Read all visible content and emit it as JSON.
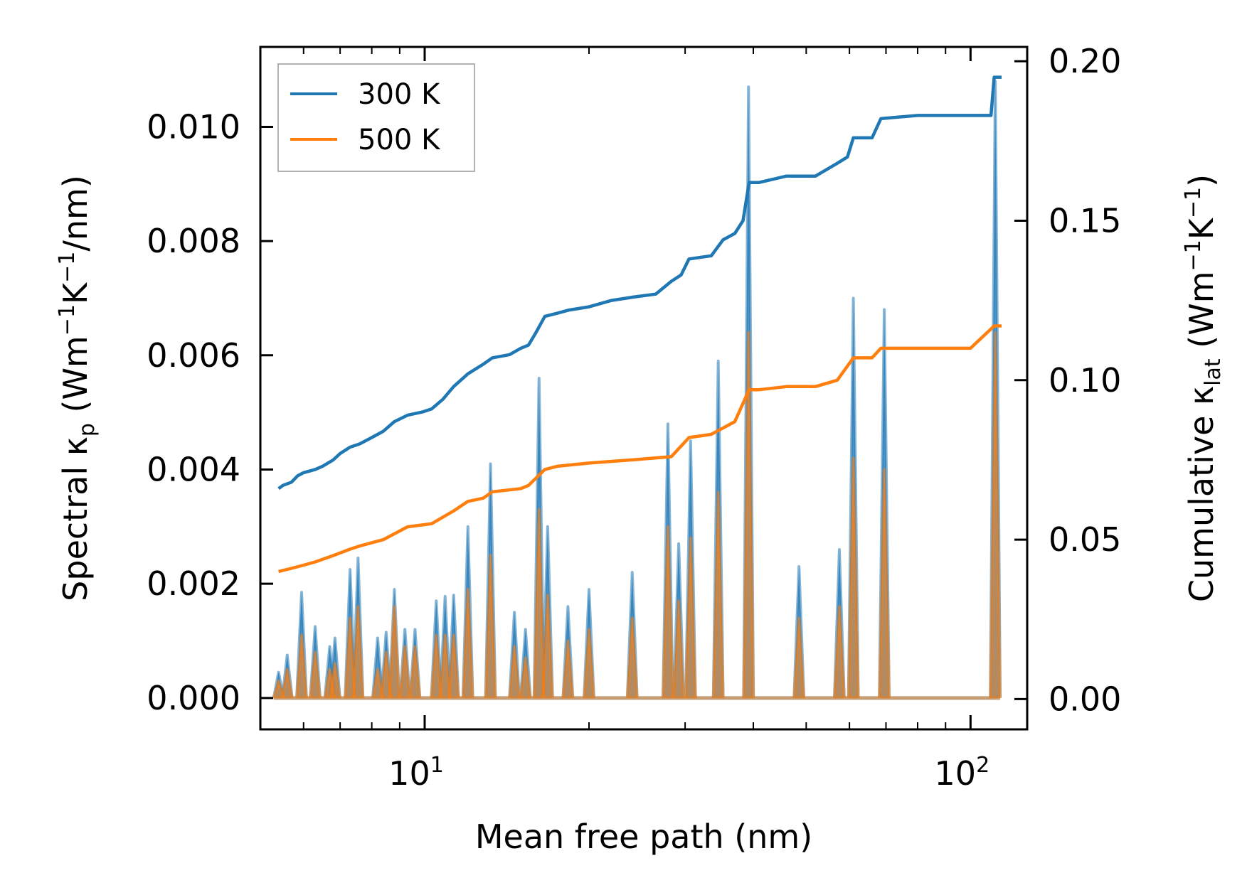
{
  "chart_data": {
    "type": "line",
    "xscale": "log",
    "xlabel": "Mean free path (nm)",
    "ylabel_left": {
      "prefix": "Spectral κ",
      "sub": "p",
      "mid": " (Wm",
      "sup1": "−1",
      "mid2": "K",
      "sup2": "−1",
      "suffix": "/nm)"
    },
    "ylabel_right": {
      "prefix": "Cumulative κ",
      "sub": "lat",
      "mid": " (Wm",
      "sup1": "−1",
      "mid2": "K",
      "sup2": "−1",
      "suffix": ")"
    },
    "xlim": [
      5.0,
      127
    ],
    "ylim_left": [
      -0.00055,
      0.0114
    ],
    "ylim_right": [
      -0.0095,
      0.2045
    ],
    "x_ticks": [
      {
        "value": 10,
        "base": "10",
        "exp": "1"
      },
      {
        "value": 100,
        "base": "10",
        "exp": "2"
      }
    ],
    "y_ticks_left": [
      {
        "value": 0.0,
        "label": "0.000"
      },
      {
        "value": 0.002,
        "label": "0.002"
      },
      {
        "value": 0.004,
        "label": "0.004"
      },
      {
        "value": 0.006,
        "label": "0.006"
      },
      {
        "value": 0.008,
        "label": "0.008"
      },
      {
        "value": 0.01,
        "label": "0.010"
      }
    ],
    "y_ticks_right": [
      {
        "value": 0.0,
        "label": "0.00"
      },
      {
        "value": 0.05,
        "label": "0.05"
      },
      {
        "value": 0.1,
        "label": "0.10"
      },
      {
        "value": 0.15,
        "label": "0.15"
      },
      {
        "value": 0.2,
        "label": "0.20"
      }
    ],
    "legend": [
      {
        "label": "300 K",
        "color": "#1f77b4"
      },
      {
        "label": "500 K",
        "color": "#ff7f0e"
      }
    ],
    "legend_position": "top-left",
    "series": [
      {
        "name": "300 K",
        "color": "#1f77b4",
        "axis": "right",
        "kind": "cumulative",
        "x": [
          5.4,
          5.5,
          5.7,
          5.85,
          6.0,
          6.3,
          6.5,
          6.8,
          7.0,
          7.3,
          7.6,
          8.0,
          8.4,
          8.8,
          9.3,
          9.9,
          10.3,
          10.8,
          11.3,
          12.0,
          12.8,
          13.3,
          14.3,
          15.0,
          15.5,
          16.0,
          16.6,
          17.5,
          18.4,
          20.0,
          22.0,
          24.0,
          26.5,
          28.3,
          29.5,
          30.5,
          33.5,
          35.2,
          37.0,
          38.3,
          39.3,
          41.0,
          46.0,
          52.0,
          57.0,
          59.5,
          61.0,
          66.0,
          68.5,
          80.0,
          100.0,
          109.0,
          110.5,
          114.0
        ],
        "y": [
          0.066,
          0.067,
          0.068,
          0.07,
          0.071,
          0.072,
          0.073,
          0.075,
          0.077,
          0.079,
          0.08,
          0.082,
          0.084,
          0.087,
          0.089,
          0.09,
          0.091,
          0.094,
          0.098,
          0.102,
          0.105,
          0.107,
          0.108,
          0.11,
          0.111,
          0.115,
          0.12,
          0.121,
          0.122,
          0.123,
          0.125,
          0.126,
          0.127,
          0.131,
          0.133,
          0.138,
          0.139,
          0.144,
          0.146,
          0.15,
          0.162,
          0.162,
          0.164,
          0.164,
          0.168,
          0.17,
          0.176,
          0.176,
          0.182,
          0.183,
          0.183,
          0.183,
          0.195,
          0.195
        ]
      },
      {
        "name": "500 K",
        "color": "#ff7f0e",
        "axis": "right",
        "kind": "cumulative",
        "x": [
          5.4,
          5.7,
          6.0,
          6.3,
          6.8,
          7.3,
          7.6,
          8.4,
          9.3,
          10.3,
          11.3,
          12.0,
          12.8,
          13.3,
          15.0,
          15.5,
          16.6,
          17.5,
          20.0,
          24.0,
          28.3,
          30.5,
          33.5,
          37.0,
          39.3,
          41.0,
          46.0,
          52.0,
          57.0,
          61.0,
          66.0,
          68.5,
          80.0,
          100.0,
          110.5,
          114.0
        ],
        "y": [
          0.04,
          0.041,
          0.042,
          0.043,
          0.045,
          0.047,
          0.048,
          0.05,
          0.054,
          0.055,
          0.059,
          0.062,
          0.063,
          0.065,
          0.066,
          0.067,
          0.072,
          0.073,
          0.074,
          0.075,
          0.076,
          0.082,
          0.083,
          0.087,
          0.097,
          0.097,
          0.098,
          0.098,
          0.1,
          0.107,
          0.107,
          0.11,
          0.11,
          0.11,
          0.117,
          0.117
        ]
      },
      {
        "name": "300 K spectral",
        "color": "#1f77b4",
        "axis": "left",
        "kind": "spectral",
        "peaks": [
          [
            5.4,
            0.00045
          ],
          [
            5.6,
            0.00075
          ],
          [
            5.95,
            0.00185
          ],
          [
            6.3,
            0.00125
          ],
          [
            6.7,
            0.0009
          ],
          [
            6.85,
            0.00105
          ],
          [
            7.3,
            0.00225
          ],
          [
            7.55,
            0.00245
          ],
          [
            8.2,
            0.00105
          ],
          [
            8.5,
            0.00115
          ],
          [
            8.8,
            0.0019
          ],
          [
            9.2,
            0.0012
          ],
          [
            9.6,
            0.0012
          ],
          [
            10.5,
            0.0017
          ],
          [
            10.9,
            0.00178
          ],
          [
            11.3,
            0.0018
          ],
          [
            12.0,
            0.003
          ],
          [
            13.2,
            0.0041
          ],
          [
            14.6,
            0.0015
          ],
          [
            15.3,
            0.0012
          ],
          [
            16.2,
            0.0056
          ],
          [
            16.8,
            0.003
          ],
          [
            18.3,
            0.0016
          ],
          [
            20.0,
            0.0019
          ],
          [
            24.0,
            0.0022
          ],
          [
            27.9,
            0.0048
          ],
          [
            29.2,
            0.0027
          ],
          [
            30.7,
            0.0045
          ],
          [
            34.5,
            0.0059
          ],
          [
            39.2,
            0.0107
          ],
          [
            48.5,
            0.0023
          ],
          [
            57.5,
            0.0026
          ],
          [
            61.0,
            0.007
          ],
          [
            69.5,
            0.0068
          ],
          [
            111.0,
            0.0108
          ]
        ]
      },
      {
        "name": "500 K spectral",
        "color": "#ff7f0e",
        "axis": "left",
        "kind": "spectral",
        "peaks": [
          [
            5.4,
            0.0003
          ],
          [
            5.6,
            0.0005
          ],
          [
            5.95,
            0.0011
          ],
          [
            6.3,
            0.0008
          ],
          [
            6.7,
            0.0005
          ],
          [
            6.85,
            0.0006
          ],
          [
            7.3,
            0.0014
          ],
          [
            7.55,
            0.0016
          ],
          [
            8.2,
            0.0005
          ],
          [
            8.5,
            0.0008
          ],
          [
            8.8,
            0.0016
          ],
          [
            9.2,
            0.0009
          ],
          [
            9.6,
            0.0009
          ],
          [
            10.5,
            0.0011
          ],
          [
            10.9,
            0.0011
          ],
          [
            11.3,
            0.0011
          ],
          [
            12.0,
            0.0019
          ],
          [
            13.2,
            0.0025
          ],
          [
            14.6,
            0.0009
          ],
          [
            15.3,
            0.0007
          ],
          [
            16.2,
            0.0033
          ],
          [
            16.8,
            0.0018
          ],
          [
            18.3,
            0.001
          ],
          [
            20.0,
            0.0012
          ],
          [
            24.0,
            0.0014
          ],
          [
            27.9,
            0.003
          ],
          [
            29.2,
            0.0017
          ],
          [
            30.7,
            0.0028
          ],
          [
            34.5,
            0.0036
          ],
          [
            39.2,
            0.0064
          ],
          [
            48.5,
            0.0014
          ],
          [
            57.5,
            0.0016
          ],
          [
            61.0,
            0.0042
          ],
          [
            69.5,
            0.004
          ],
          [
            111.0,
            0.0064
          ]
        ]
      }
    ]
  }
}
